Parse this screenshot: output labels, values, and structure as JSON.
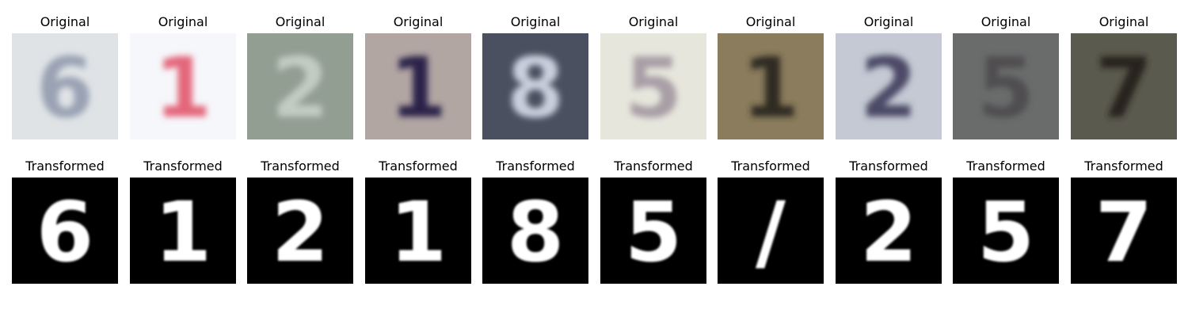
{
  "panels": [
    {
      "original_label": "Original",
      "transformed_label": "Transformed",
      "original_digit": "6",
      "transformed_digit": "6",
      "original_bg": "#dfe3e6",
      "original_fg": "#9aa2b4"
    },
    {
      "original_label": "Original",
      "transformed_label": "Transformed",
      "original_digit": "1",
      "transformed_digit": "1",
      "original_bg": "#f6f7fb",
      "original_fg": "#e4667a"
    },
    {
      "original_label": "Original",
      "transformed_label": "Transformed",
      "original_digit": "2",
      "transformed_digit": "2",
      "original_bg": "#939e93",
      "original_fg": "#c3ccc3"
    },
    {
      "original_label": "Original",
      "transformed_label": "Transformed",
      "original_digit": "1",
      "transformed_digit": "1",
      "original_bg": "#b2a6a3",
      "original_fg": "#2b2148"
    },
    {
      "original_label": "Original",
      "transformed_label": "Transformed",
      "original_digit": "8",
      "transformed_digit": "8",
      "original_bg": "#4a5060",
      "original_fg": "#c9cfdc"
    },
    {
      "original_label": "Original",
      "transformed_label": "Transformed",
      "original_digit": "5",
      "transformed_digit": "5",
      "original_bg": "#e6e6dc",
      "original_fg": "#a89ea6"
    },
    {
      "original_label": "Original",
      "transformed_label": "Transformed",
      "original_digit": "1",
      "transformed_digit": "/",
      "original_bg": "#8a7c5c",
      "original_fg": "#2e2a22"
    },
    {
      "original_label": "Original",
      "transformed_label": "Transformed",
      "original_digit": "2",
      "transformed_digit": "2",
      "original_bg": "#c4c9d3",
      "original_fg": "#4c4a66"
    },
    {
      "original_label": "Original",
      "transformed_label": "Transformed",
      "original_digit": "5",
      "transformed_digit": "5",
      "original_bg": "#6a6c6c",
      "original_fg": "#4f4e50"
    },
    {
      "original_label": "Original",
      "transformed_label": "Transformed",
      "original_digit": "7",
      "transformed_digit": "7",
      "original_bg": "#5a5a4e",
      "original_fg": "#27241e"
    }
  ]
}
